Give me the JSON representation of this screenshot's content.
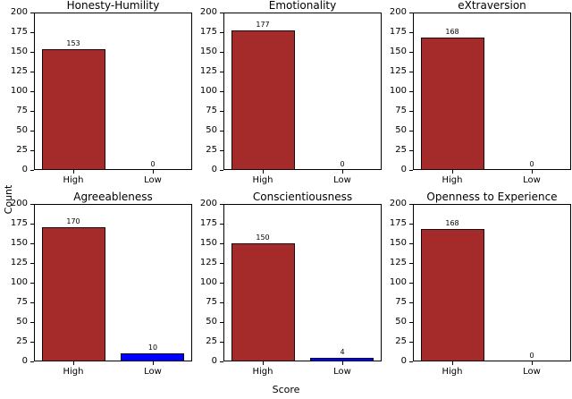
{
  "figure": {
    "xlabel": "Score",
    "ylabel": "Count",
    "background_color": "#ffffff",
    "text_color": "#000000",
    "bar_edge_color": "#000000",
    "accent_colors": {
      "high_bar": "#a52a2a",
      "low_bar": "#0000ff"
    }
  },
  "chart_data": [
    {
      "type": "bar",
      "title": "Honesty-Humility",
      "categories": [
        "High",
        "Low"
      ],
      "values": [
        153,
        0
      ],
      "bar_colors": [
        "#a52a2a",
        "#0000ff"
      ],
      "ylim": [
        0,
        200
      ],
      "yticks": [
        0,
        25,
        50,
        75,
        100,
        125,
        150,
        175,
        200
      ],
      "grid": false
    },
    {
      "type": "bar",
      "title": "Emotionality",
      "categories": [
        "High",
        "Low"
      ],
      "values": [
        177,
        0
      ],
      "bar_colors": [
        "#a52a2a",
        "#0000ff"
      ],
      "ylim": [
        0,
        200
      ],
      "yticks": [
        0,
        25,
        50,
        75,
        100,
        125,
        150,
        175,
        200
      ],
      "grid": false
    },
    {
      "type": "bar",
      "title": "eXtraversion",
      "categories": [
        "High",
        "Low"
      ],
      "values": [
        168,
        0
      ],
      "bar_colors": [
        "#a52a2a",
        "#0000ff"
      ],
      "ylim": [
        0,
        200
      ],
      "yticks": [
        0,
        25,
        50,
        75,
        100,
        125,
        150,
        175,
        200
      ],
      "grid": false
    },
    {
      "type": "bar",
      "title": "Agreeableness",
      "categories": [
        "High",
        "Low"
      ],
      "values": [
        170,
        10
      ],
      "bar_colors": [
        "#a52a2a",
        "#0000ff"
      ],
      "ylim": [
        0,
        200
      ],
      "yticks": [
        0,
        25,
        50,
        75,
        100,
        125,
        150,
        175,
        200
      ],
      "grid": false
    },
    {
      "type": "bar",
      "title": "Conscientiousness",
      "categories": [
        "High",
        "Low"
      ],
      "values": [
        150,
        4
      ],
      "bar_colors": [
        "#a52a2a",
        "#0000ff"
      ],
      "ylim": [
        0,
        200
      ],
      "yticks": [
        0,
        25,
        50,
        75,
        100,
        125,
        150,
        175,
        200
      ],
      "grid": false
    },
    {
      "type": "bar",
      "title": "Openness to Experience",
      "categories": [
        "High",
        "Low"
      ],
      "values": [
        168,
        0
      ],
      "bar_colors": [
        "#a52a2a",
        "#0000ff"
      ],
      "ylim": [
        0,
        200
      ],
      "yticks": [
        0,
        25,
        50,
        75,
        100,
        125,
        150,
        175,
        200
      ],
      "grid": false
    }
  ]
}
